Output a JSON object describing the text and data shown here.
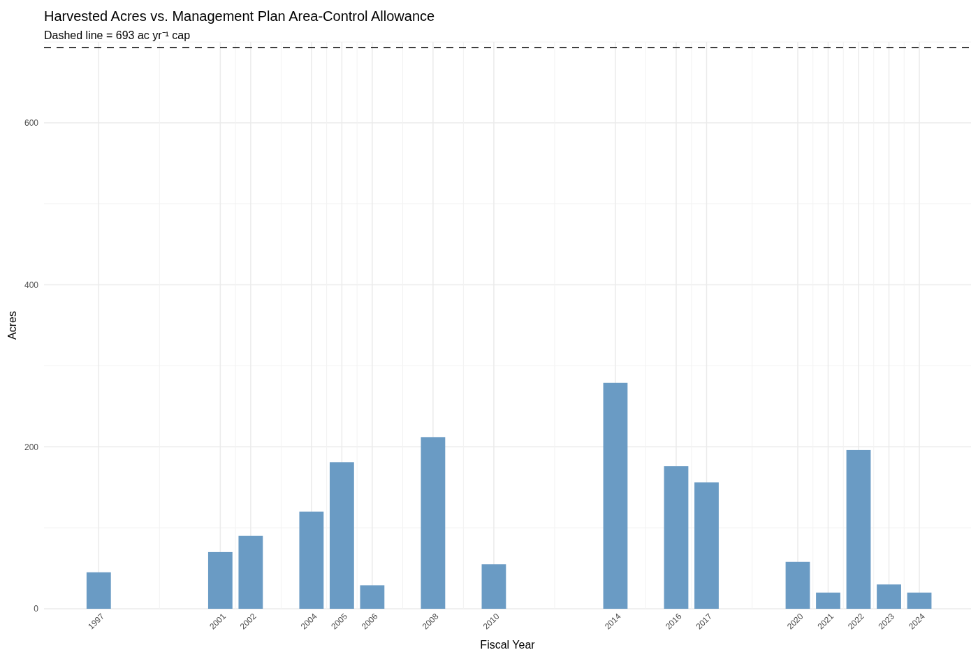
{
  "chart_data": {
    "type": "bar",
    "title": "Harvested Acres vs. Management Plan Area-Control Allowance",
    "subtitle": "Dashed line = 693 ac yr⁻¹ cap",
    "xlabel": "Fiscal Year",
    "ylabel": "Acres",
    "x": [
      1997,
      2001,
      2002,
      2004,
      2005,
      2006,
      2008,
      2010,
      2014,
      2016,
      2017,
      2020,
      2021,
      2022,
      2023,
      2024
    ],
    "values": [
      45,
      70,
      90,
      120,
      181,
      29,
      212,
      55,
      279,
      176,
      156,
      58,
      20,
      196,
      30,
      20
    ],
    "color": "#6a9bc4",
    "xlim": [
      1995.2,
      2025.7
    ],
    "xticks": [
      1997,
      2001,
      2002,
      2004,
      2005,
      2006,
      2008,
      2010,
      2014,
      2016,
      2017,
      2020,
      2021,
      2022,
      2023,
      2024
    ],
    "ylim": [
      0,
      700
    ],
    "yticks": [
      0,
      200,
      400,
      600
    ],
    "grid": true,
    "ref_lines": [
      {
        "axis": "y",
        "value": 693,
        "color": "#000000",
        "line_style": "dashed"
      }
    ]
  }
}
